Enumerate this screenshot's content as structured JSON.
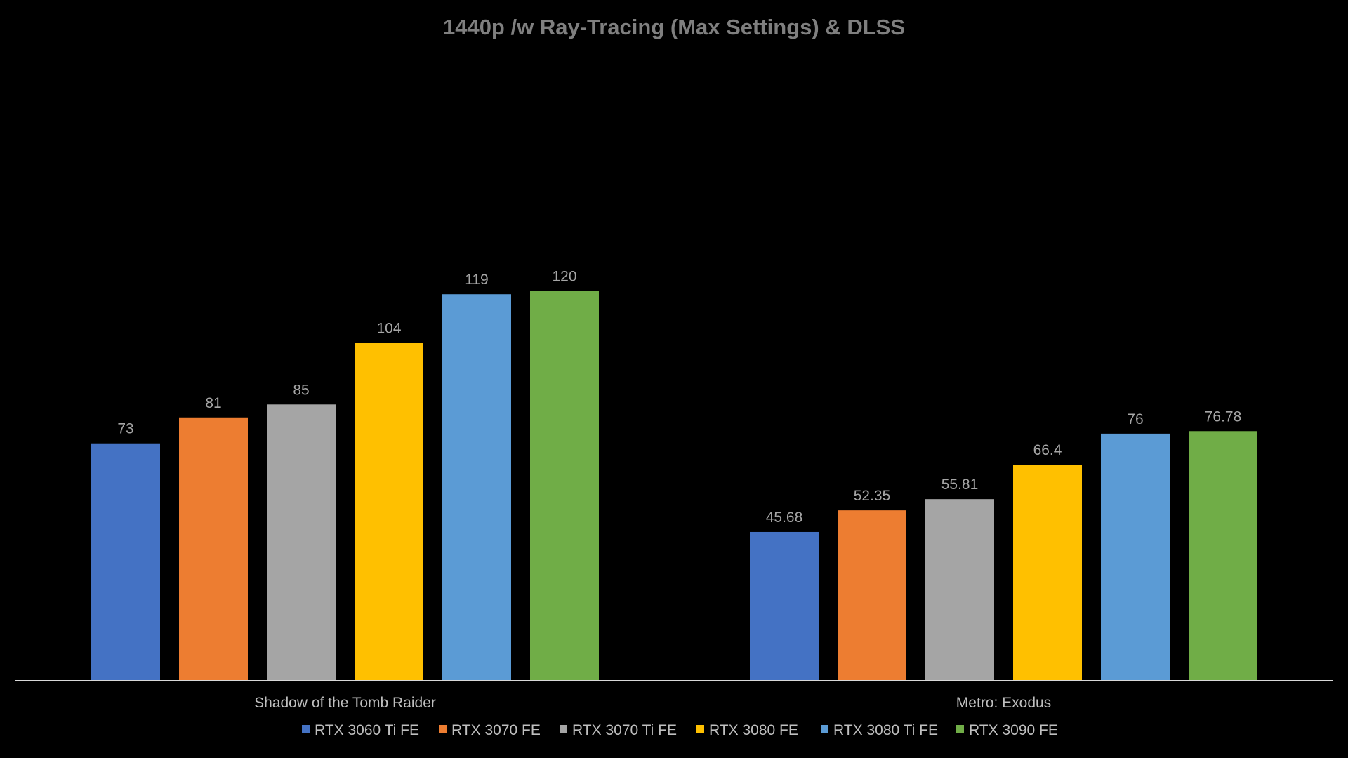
{
  "chart_data": {
    "type": "bar",
    "title": "1440p /w Ray-Tracing (Max Settings) & DLSS",
    "xlabel": "",
    "ylabel": "",
    "ylim": [
      0,
      130
    ],
    "grid": false,
    "legend_position": "bottom",
    "categories": [
      "Shadow of the Tomb Raider",
      "Metro: Exodus"
    ],
    "series": [
      {
        "name": "RTX 3060 Ti FE",
        "color": "#4472c4",
        "values": [
          73,
          45.68
        ],
        "labels": [
          "73",
          "45.68"
        ]
      },
      {
        "name": "RTX 3070 FE",
        "color": "#ed7d31",
        "values": [
          81,
          52.35
        ],
        "labels": [
          "81",
          "52.35"
        ]
      },
      {
        "name": "RTX 3070 Ti FE",
        "color": "#a5a5a5",
        "values": [
          85,
          55.81
        ],
        "labels": [
          "85",
          "55.81"
        ]
      },
      {
        "name": "RTX 3080 FE",
        "color": "#ffc000",
        "values": [
          104,
          66.4
        ],
        "labels": [
          "104",
          "66.4"
        ]
      },
      {
        "name": "RTX 3080 Ti FE",
        "color": "#5b9bd5",
        "values": [
          119,
          76
        ],
        "labels": [
          "119",
          "76"
        ]
      },
      {
        "name": "RTX 3090 FE",
        "color": "#70ad47",
        "values": [
          120,
          76.78
        ],
        "labels": [
          "120",
          "76.78"
        ]
      }
    ]
  },
  "colors": {
    "background": "#000000",
    "axis_line": "#d9d9d9",
    "title": "#7f7f7f",
    "data_label": "#a6a6a6",
    "category_label": "#bfbfbf"
  }
}
